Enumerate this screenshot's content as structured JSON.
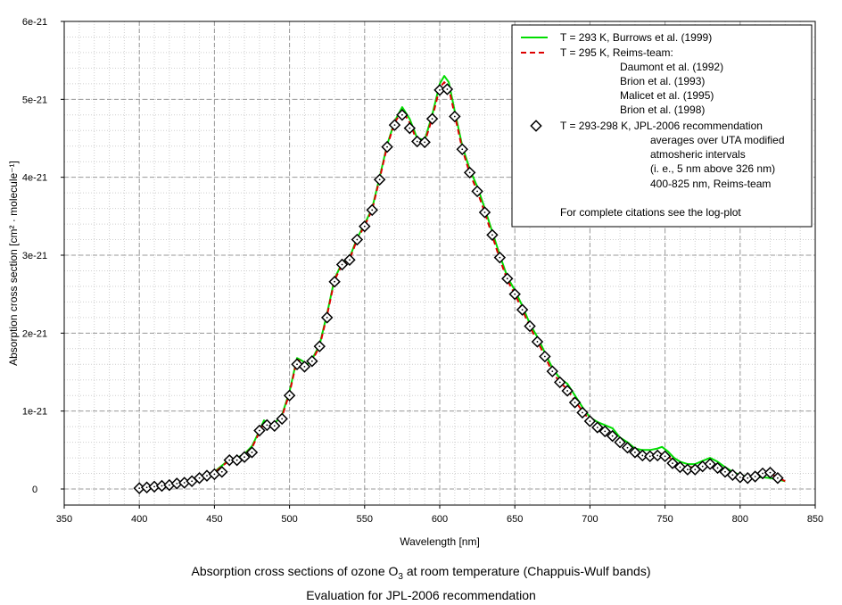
{
  "chart_data": {
    "type": "line",
    "xlabel": "Wavelength [nm]",
    "ylabel": "Absorption cross section [cm² · molecule⁻¹]",
    "xlim": [
      350,
      850
    ],
    "ylim": [
      0,
      6e-21
    ],
    "x_ticks": [
      "350",
      "400",
      "450",
      "500",
      "550",
      "600",
      "650",
      "700",
      "750",
      "800",
      "850"
    ],
    "y_ticks": [
      "0",
      "1e-21",
      "2e-21",
      "3e-21",
      "4e-21",
      "5e-21",
      "6e-21"
    ],
    "grid": true,
    "legend_placement": "top-right",
    "series": [
      {
        "name": "T = 293 K, Burrows et al. (1999)",
        "color": "#00dd00",
        "style": "solid",
        "x": [
          400,
          410,
          420,
          430,
          440,
          450,
          455,
          460,
          465,
          470,
          475,
          480,
          483,
          487,
          490,
          495,
          500,
          505,
          508,
          512,
          516,
          520,
          525,
          530,
          535,
          540,
          545,
          550,
          555,
          560,
          565,
          570,
          575,
          580,
          585,
          590,
          595,
          600,
          603,
          606,
          610,
          615,
          620,
          625,
          630,
          635,
          640,
          645,
          650,
          655,
          660,
          665,
          670,
          675,
          680,
          685,
          690,
          695,
          700,
          705,
          710,
          715,
          720,
          725,
          730,
          735,
          740,
          745,
          748,
          752,
          756,
          760,
          765,
          770,
          775,
          780,
          785,
          790,
          795,
          800,
          805,
          810,
          815,
          820,
          825,
          830
        ],
        "y": [
          2e-23,
          3e-23,
          5e-23,
          8e-23,
          1.4e-22,
          2.2e-22,
          3e-22,
          3.8e-22,
          4e-22,
          4.5e-22,
          5.5e-22,
          7.5e-22,
          8.8e-22,
          8.2e-22,
          8.4e-22,
          9.5e-22,
          1.25e-21,
          1.68e-21,
          1.65e-21,
          1.6e-21,
          1.7e-21,
          1.85e-21,
          2.25e-21,
          2.7e-21,
          2.9e-21,
          2.97e-21,
          3.22e-21,
          3.4e-21,
          3.6e-21,
          4e-21,
          4.42e-21,
          4.72e-21,
          4.9e-21,
          4.75e-21,
          4.5e-21,
          4.48e-21,
          4.8e-21,
          5.2e-21,
          5.3e-21,
          5.22e-21,
          4.85e-21,
          4.4e-21,
          4.1e-21,
          3.88e-21,
          3.6e-21,
          3.3e-21,
          3e-21,
          2.72e-21,
          2.55e-21,
          2.35e-21,
          2.12e-21,
          1.95e-21,
          1.75e-21,
          1.55e-21,
          1.42e-21,
          1.35e-21,
          1.2e-21,
          1.05e-21,
          9.2e-22,
          8.6e-22,
          8.2e-22,
          7.8e-22,
          6.6e-22,
          6e-22,
          5.2e-22,
          5e-22,
          5e-22,
          5.2e-22,
          5.4e-22,
          4.8e-22,
          4e-22,
          3.5e-22,
          3.2e-22,
          3.2e-22,
          3.6e-22,
          4e-22,
          3.5e-22,
          2.8e-22,
          2.2e-22,
          1.8e-22,
          1.6e-22,
          1.5e-22,
          1.5e-22,
          1.4e-22,
          1.2e-22,
          1e-22
        ]
      },
      {
        "name": "T = 295 K, Reims-team:",
        "color": "#dd0000",
        "style": "dashed",
        "x": [
          400,
          410,
          420,
          430,
          440,
          450,
          455,
          460,
          465,
          470,
          475,
          480,
          483,
          487,
          490,
          495,
          500,
          505,
          508,
          512,
          516,
          520,
          525,
          530,
          535,
          540,
          545,
          550,
          555,
          560,
          565,
          570,
          575,
          580,
          585,
          590,
          595,
          600,
          603,
          606,
          610,
          615,
          620,
          625,
          630,
          635,
          640,
          645,
          650,
          655,
          660,
          665,
          670,
          675,
          680,
          685,
          690,
          695,
          700,
          705,
          710,
          715,
          720,
          725,
          730,
          735,
          740,
          745,
          748,
          752,
          756,
          760,
          765,
          770,
          775,
          780,
          785,
          790,
          795,
          800,
          805,
          810,
          815,
          820,
          825,
          830
        ],
        "y": [
          2e-23,
          3e-23,
          5e-23,
          8e-23,
          1.4e-22,
          2.1e-22,
          2.9e-22,
          3.7e-22,
          3.9e-22,
          4.4e-22,
          5.3e-22,
          7.3e-22,
          8.6e-22,
          8e-22,
          8.3e-22,
          9.3e-22,
          1.23e-21,
          1.66e-21,
          1.63e-21,
          1.58e-21,
          1.68e-21,
          1.83e-21,
          2.23e-21,
          2.68e-21,
          2.88e-21,
          2.95e-21,
          3.2e-21,
          3.38e-21,
          3.58e-21,
          3.98e-21,
          4.4e-21,
          4.7e-21,
          4.86e-21,
          4.7e-21,
          4.46e-21,
          4.45e-21,
          4.76e-21,
          5.15e-21,
          5.22e-21,
          5.15e-21,
          4.8e-21,
          4.36e-21,
          4.05e-21,
          3.82e-21,
          3.55e-21,
          3.25e-21,
          2.95e-21,
          2.68e-21,
          2.5e-21,
          2.3e-21,
          2.08e-21,
          1.9e-21,
          1.7e-21,
          1.5e-21,
          1.37e-21,
          1.28e-21,
          1.13e-21,
          1e-21,
          8.8e-22,
          8e-22,
          7.6e-22,
          7.2e-22,
          6.2e-22,
          5.5e-22,
          4.8e-22,
          4.5e-22,
          4.4e-22,
          4.5e-22,
          4.5e-22,
          4.2e-22,
          3.5e-22,
          3e-22,
          2.8e-22,
          2.8e-22,
          3.2e-22,
          3.5e-22,
          3e-22,
          2.4e-22,
          1.9e-22,
          1.6e-22,
          1.5e-22,
          1.6e-22,
          1.9e-22,
          2e-22,
          1.5e-22,
          1e-22
        ]
      },
      {
        "name": "T = 293-298 K, JPL-2006 recommendation",
        "color": "#000000",
        "style": "markers",
        "x": [
          400,
          405,
          410,
          415,
          420,
          425,
          430,
          435,
          440,
          445,
          450,
          455,
          460,
          465,
          470,
          475,
          480,
          485,
          490,
          495,
          500,
          505,
          510,
          515,
          520,
          525,
          530,
          535,
          540,
          545,
          550,
          555,
          560,
          565,
          570,
          575,
          580,
          585,
          590,
          595,
          600,
          605,
          610,
          615,
          620,
          625,
          630,
          635,
          640,
          645,
          650,
          655,
          660,
          665,
          670,
          675,
          680,
          685,
          690,
          695,
          700,
          705,
          710,
          715,
          720,
          725,
          730,
          735,
          740,
          745,
          750,
          755,
          760,
          765,
          770,
          775,
          780,
          785,
          790,
          795,
          800,
          805,
          810,
          815,
          820,
          825
        ],
        "y": [
          1e-23,
          2e-23,
          3e-23,
          4e-23,
          5e-23,
          7e-23,
          8e-23,
          1e-22,
          1.4e-22,
          1.7e-22,
          1.9e-22,
          2.2e-22,
          3.7e-22,
          3.7e-22,
          4.1e-22,
          4.7e-22,
          7.5e-22,
          8.2e-22,
          8.1e-22,
          9e-22,
          1.2e-21,
          1.6e-21,
          1.57e-21,
          1.64e-21,
          1.83e-21,
          2.2e-21,
          2.66e-21,
          2.88e-21,
          2.94e-21,
          3.2e-21,
          3.37e-21,
          3.58e-21,
          3.97e-21,
          4.39e-21,
          4.67e-21,
          4.8e-21,
          4.63e-21,
          4.46e-21,
          4.45e-21,
          4.75e-21,
          5.12e-21,
          5.13e-21,
          4.78e-21,
          4.36e-21,
          4.06e-21,
          3.82e-21,
          3.55e-21,
          3.26e-21,
          2.97e-21,
          2.7e-21,
          2.5e-21,
          2.3e-21,
          2.09e-21,
          1.89e-21,
          1.7e-21,
          1.51e-21,
          1.37e-21,
          1.26e-21,
          1.11e-21,
          9.8e-22,
          8.7e-22,
          7.9e-22,
          7.4e-22,
          6.8e-22,
          6e-22,
          5.3e-22,
          4.7e-22,
          4.3e-22,
          4.2e-22,
          4.3e-22,
          4.2e-22,
          3.3e-22,
          2.8e-22,
          2.5e-22,
          2.5e-22,
          2.9e-22,
          3.2e-22,
          2.7e-22,
          2.2e-22,
          1.8e-22,
          1.5e-22,
          1.4e-22,
          1.6e-22,
          2e-22,
          2.1e-22,
          1.4e-22
        ]
      }
    ],
    "legend": {
      "entries": [
        {
          "lines": [
            "T = 293 K, Burrows et al. (1999)"
          ]
        },
        {
          "lines": [
            "T = 295 K, Reims-team:",
            "Daumont et al. (1992)",
            "Brion et al. (1993)",
            "Malicet et al. (1995)",
            "Brion et al. (1998)"
          ]
        },
        {
          "lines": [
            "T = 293-298 K, JPL-2006 recommendation",
            "averages over UTA modified",
            "atmosheric intervals",
            "(i. e., 5 nm above 326 nm)",
            "400-825 nm, Reims-team"
          ]
        }
      ],
      "note": "For complete citations see the log-plot"
    }
  },
  "caption": {
    "line1_prefix": "Absorption cross sections of ozone O",
    "line1_sub": "3",
    "line1_suffix": " at room temperature (Chappuis-Wulf bands)",
    "line2": "Evaluation for JPL-2006 recommendation"
  }
}
